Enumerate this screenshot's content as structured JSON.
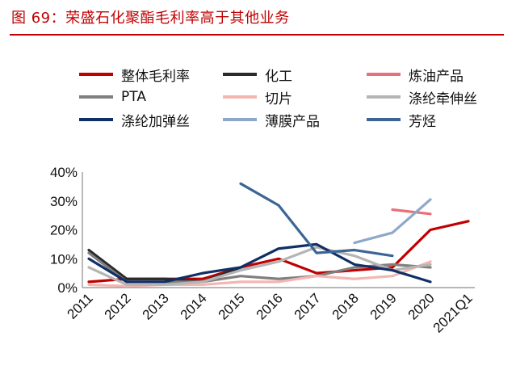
{
  "header": {
    "title": "图 69：荣盛石化聚酯毛利率高于其他业务"
  },
  "chart_data": {
    "type": "line",
    "categories": [
      "2011",
      "2012",
      "2013",
      "2014",
      "2015",
      "2016",
      "2017",
      "2018",
      "2019",
      "2020",
      "2021Q1"
    ],
    "y_tick_labels": [
      "0%",
      "10%",
      "20%",
      "30%",
      "40%"
    ],
    "ylim": [
      0,
      40
    ],
    "grid": false,
    "legend_placement": "top",
    "series": [
      {
        "name": "整体毛利率",
        "color": "#c00000",
        "values": [
          2,
          3,
          3,
          3,
          7,
          10,
          5,
          6,
          7,
          20,
          23
        ]
      },
      {
        "name": "化工",
        "color": "#2b2b2b",
        "values": [
          13,
          3,
          3,
          2,
          7,
          null,
          null,
          null,
          null,
          null,
          null
        ]
      },
      {
        "name": "炼油产品",
        "color": "#e8707a",
        "values": [
          null,
          null,
          null,
          null,
          null,
          null,
          null,
          null,
          27,
          25.5,
          null
        ]
      },
      {
        "name": "PTA",
        "color": "#7f7f7f",
        "values": [
          12,
          2,
          2,
          2,
          4,
          3,
          4,
          7,
          8,
          7,
          null
        ]
      },
      {
        "name": "切片",
        "color": "#f4b6b0",
        "values": [
          1,
          0.5,
          1,
          1,
          2,
          2,
          4,
          3,
          4,
          9,
          null
        ]
      },
      {
        "name": "涤纶牵伸丝",
        "color": "#b5b5b5",
        "values": [
          7,
          1,
          1,
          2,
          6,
          9,
          14,
          11,
          6,
          8,
          null
        ]
      },
      {
        "name": "涤纶加弹丝",
        "color": "#102f66",
        "values": [
          10,
          2,
          2,
          5,
          7,
          13.5,
          15,
          8,
          6,
          2,
          null
        ]
      },
      {
        "name": "薄膜产品",
        "color": "#8ea9c8",
        "values": [
          null,
          null,
          null,
          null,
          null,
          null,
          null,
          15.5,
          19,
          30.5,
          null
        ]
      },
      {
        "name": "芳烃",
        "color": "#3c6594",
        "values": [
          null,
          null,
          null,
          null,
          36,
          28.5,
          12,
          13,
          11,
          null,
          null
        ]
      }
    ]
  }
}
